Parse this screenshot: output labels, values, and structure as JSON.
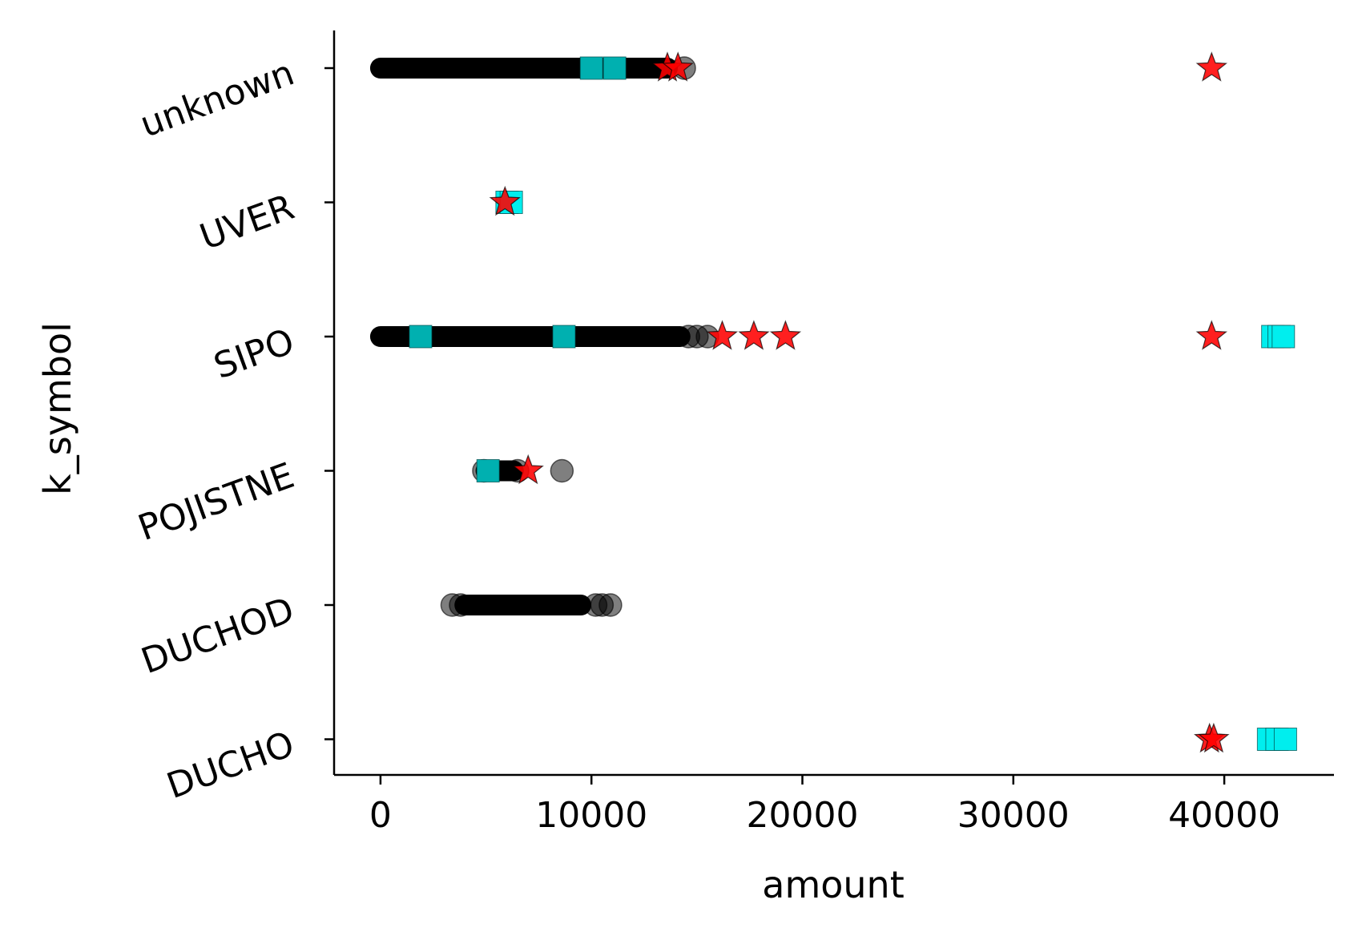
{
  "chart_data": {
    "type": "scatter",
    "title": "",
    "xlabel": "amount",
    "ylabel": "k_symbol",
    "xlim": [
      -2200,
      45200
    ],
    "x_ticks": [
      0,
      10000,
      20000,
      30000,
      40000
    ],
    "x_tick_labels": [
      "0",
      "10000",
      "20000",
      "30000",
      "40000"
    ],
    "categories": [
      "DUCHO",
      "DUCHOD",
      "POJISTNE",
      "SIPO",
      "UVER",
      "unknown"
    ],
    "grid": false,
    "legend": "none",
    "colors": {
      "points": "#000000",
      "squares_dark": "#00b0b0",
      "squares_light": "#00eeee",
      "stars": "#ff0000"
    },
    "series": [
      {
        "marker": "circle",
        "color": "#000000",
        "ranges": [
          {
            "category": "unknown",
            "from": 0,
            "to": 13600
          },
          {
            "category": "SIPO",
            "from": 0,
            "to": 14200
          },
          {
            "category": "POJISTNE",
            "from": 5000,
            "to": 6300
          },
          {
            "category": "DUCHOD",
            "from": 4000,
            "to": 9500
          }
        ],
        "points": [
          {
            "category": "unknown",
            "x": 14400
          },
          {
            "category": "SIPO",
            "x": 14600
          },
          {
            "category": "SIPO",
            "x": 15000
          },
          {
            "category": "SIPO",
            "x": 15500
          },
          {
            "category": "POJISTNE",
            "x": 4900
          },
          {
            "category": "POJISTNE",
            "x": 6500
          },
          {
            "category": "POJISTNE",
            "x": 8600
          },
          {
            "category": "DUCHOD",
            "x": 3400
          },
          {
            "category": "DUCHOD",
            "x": 3800
          },
          {
            "category": "DUCHOD",
            "x": 10200
          },
          {
            "category": "DUCHOD",
            "x": 10500
          },
          {
            "category": "DUCHOD",
            "x": 10900
          }
        ]
      },
      {
        "marker": "square",
        "color": "#00b0b0",
        "points": [
          {
            "category": "unknown",
            "x": 10000
          },
          {
            "category": "unknown",
            "x": 11100
          },
          {
            "category": "SIPO",
            "x": 1900
          },
          {
            "category": "SIPO",
            "x": 8700
          },
          {
            "category": "POJISTNE",
            "x": 5100
          }
        ]
      },
      {
        "marker": "square",
        "color": "#00eeee",
        "points": [
          {
            "category": "UVER",
            "x": 6000
          },
          {
            "category": "UVER",
            "x": 6200
          },
          {
            "category": "SIPO",
            "x": 42300
          },
          {
            "category": "SIPO",
            "x": 42600
          },
          {
            "category": "SIPO",
            "x": 42800
          },
          {
            "category": "DUCHO",
            "x": 42100
          },
          {
            "category": "DUCHO",
            "x": 42500
          },
          {
            "category": "DUCHO",
            "x": 42900
          }
        ]
      },
      {
        "marker": "star",
        "color": "#ff0000",
        "points": [
          {
            "category": "unknown",
            "x": 13600
          },
          {
            "category": "unknown",
            "x": 14100
          },
          {
            "category": "unknown",
            "x": 39400
          },
          {
            "category": "UVER",
            "x": 5900
          },
          {
            "category": "SIPO",
            "x": 16200
          },
          {
            "category": "SIPO",
            "x": 17700
          },
          {
            "category": "SIPO",
            "x": 19200
          },
          {
            "category": "SIPO",
            "x": 39400
          },
          {
            "category": "POJISTNE",
            "x": 7000
          },
          {
            "category": "DUCHO",
            "x": 39300
          },
          {
            "category": "DUCHO",
            "x": 39500
          }
        ]
      }
    ]
  }
}
